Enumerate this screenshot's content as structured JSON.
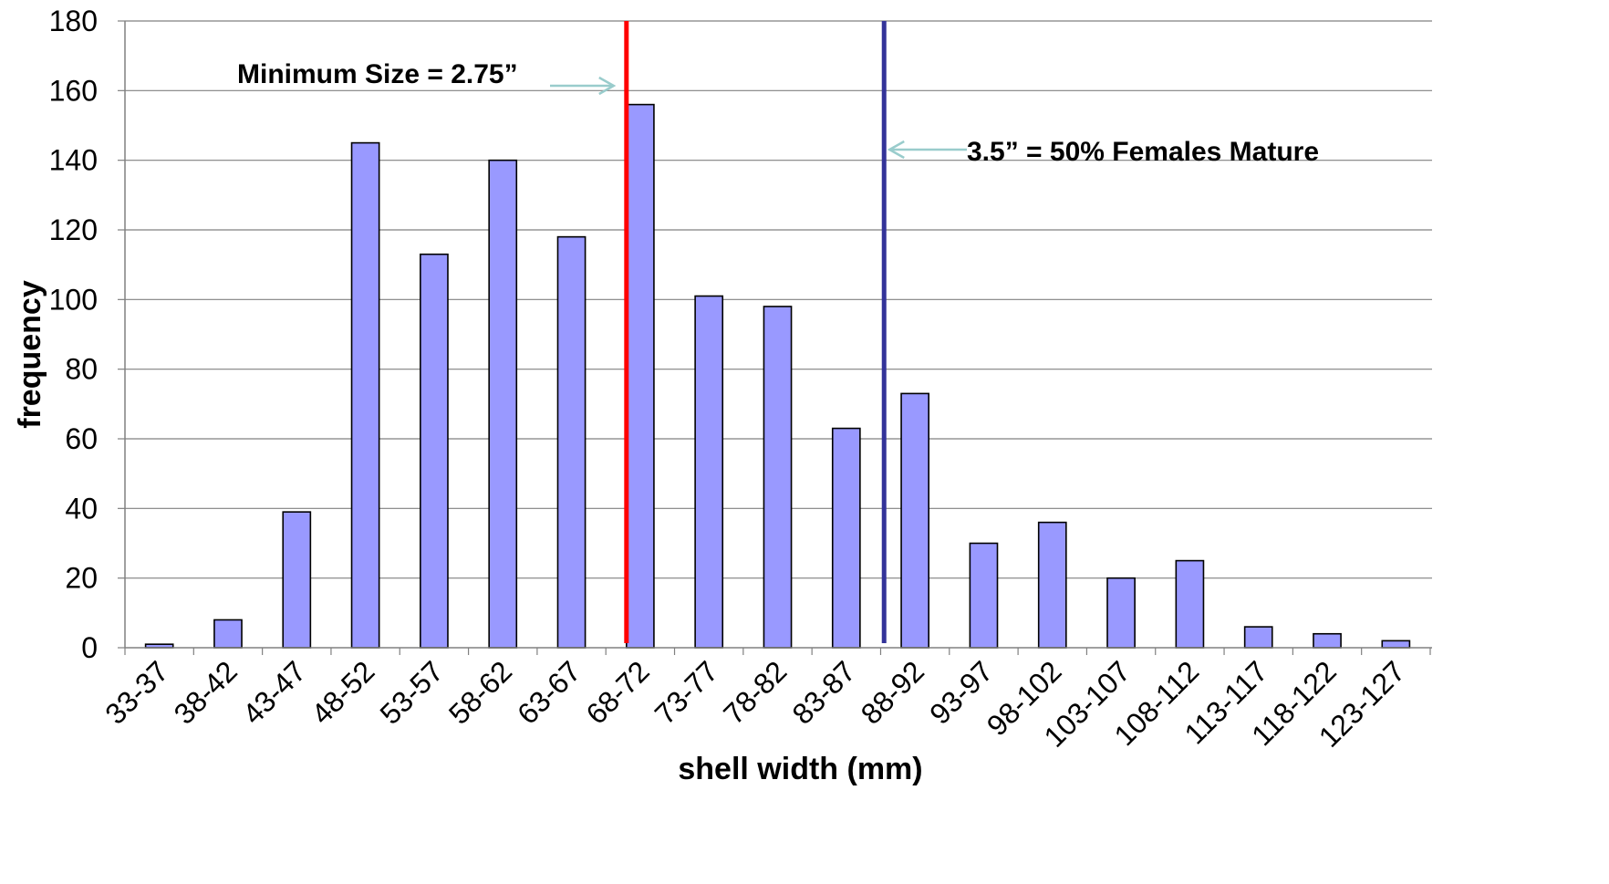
{
  "chart_data": {
    "type": "bar",
    "title": "",
    "xlabel": "shell width (mm)",
    "ylabel": "frequency",
    "ylim": [
      0,
      180
    ],
    "y_ticks": [
      0,
      20,
      40,
      60,
      80,
      100,
      120,
      140,
      160,
      180
    ],
    "grid": true,
    "legend": "none",
    "categories": [
      "33-37",
      "38-42",
      "43-47",
      "48-52",
      "53-57",
      "58-62",
      "63-67",
      "68-72",
      "73-77",
      "78-82",
      "83-87",
      "88-92",
      "93-97",
      "98-102",
      "103-107",
      "108-112",
      "113-117",
      "118-122",
      "123-127"
    ],
    "values": [
      1,
      8,
      39,
      145,
      113,
      140,
      118,
      156,
      101,
      98,
      63,
      73,
      30,
      36,
      20,
      25,
      6,
      4,
      2
    ],
    "bar_color": "#9999ff",
    "annotations": [
      {
        "text": "Minimum Size = 2.75”",
        "at_category_boundary": 7.3,
        "line_color": "#ff0000"
      },
      {
        "text": "3.5” = 50% Females Mature",
        "at_category_boundary": 11.05,
        "line_color": "#333399"
      }
    ],
    "arrow_color": "#99cccc"
  }
}
